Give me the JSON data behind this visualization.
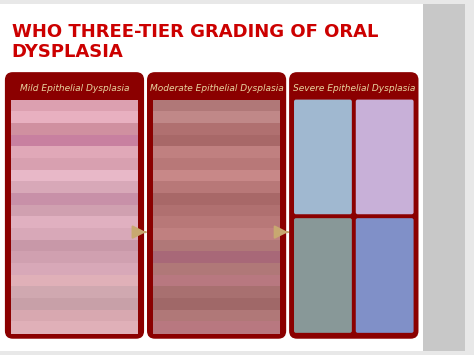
{
  "title_line1": "WHO THREE-TIER GRADING OF ORAL",
  "title_line2": "DYSPLASIA",
  "title_color": "#cc0000",
  "title_fontsize": 13,
  "panel_bg_color": "#8b0000",
  "panel_label_color": "#e8d5a0",
  "panel_label_fontsize": 6.5,
  "arrow_color": "#c8a870",
  "panels": [
    {
      "label": "Mild Epithelial Dysplasia"
    },
    {
      "label": "Moderate Epithelial Dysplasia"
    },
    {
      "label": "Severe Epithelial Dysplasia"
    }
  ],
  "slide_bg": "#e8e8e8",
  "right_strip_color": "#c8c8c8",
  "mild_colors": [
    "#dca0b0",
    "#e8b0c0",
    "#d090a0",
    "#c880a0",
    "#e0a8b8",
    "#d8a0b0",
    "#e8b8c8",
    "#d8a8b8",
    "#c890a8",
    "#d0a0b0",
    "#e0b0c0",
    "#d8a8b8",
    "#c898a8",
    "#d0a0b0",
    "#d8a8b8",
    "#e0b0b8",
    "#d0a8b0",
    "#c8a0a8",
    "#d8a8b0",
    "#e0b0b8"
  ],
  "moderate_colors": [
    "#b07878",
    "#c08888",
    "#b07070",
    "#a86868",
    "#c08080",
    "#b87878",
    "#c88888",
    "#b87878",
    "#a86868",
    "#b07070",
    "#b87878",
    "#c08080",
    "#b07878",
    "#a86878",
    "#b07878",
    "#b87880",
    "#a87070",
    "#a06868",
    "#b07878",
    "#b87880"
  ],
  "severe_sub_colors": [
    "#a0b8d0",
    "#c8b0d8",
    "#889898",
    "#8090c8"
  ]
}
